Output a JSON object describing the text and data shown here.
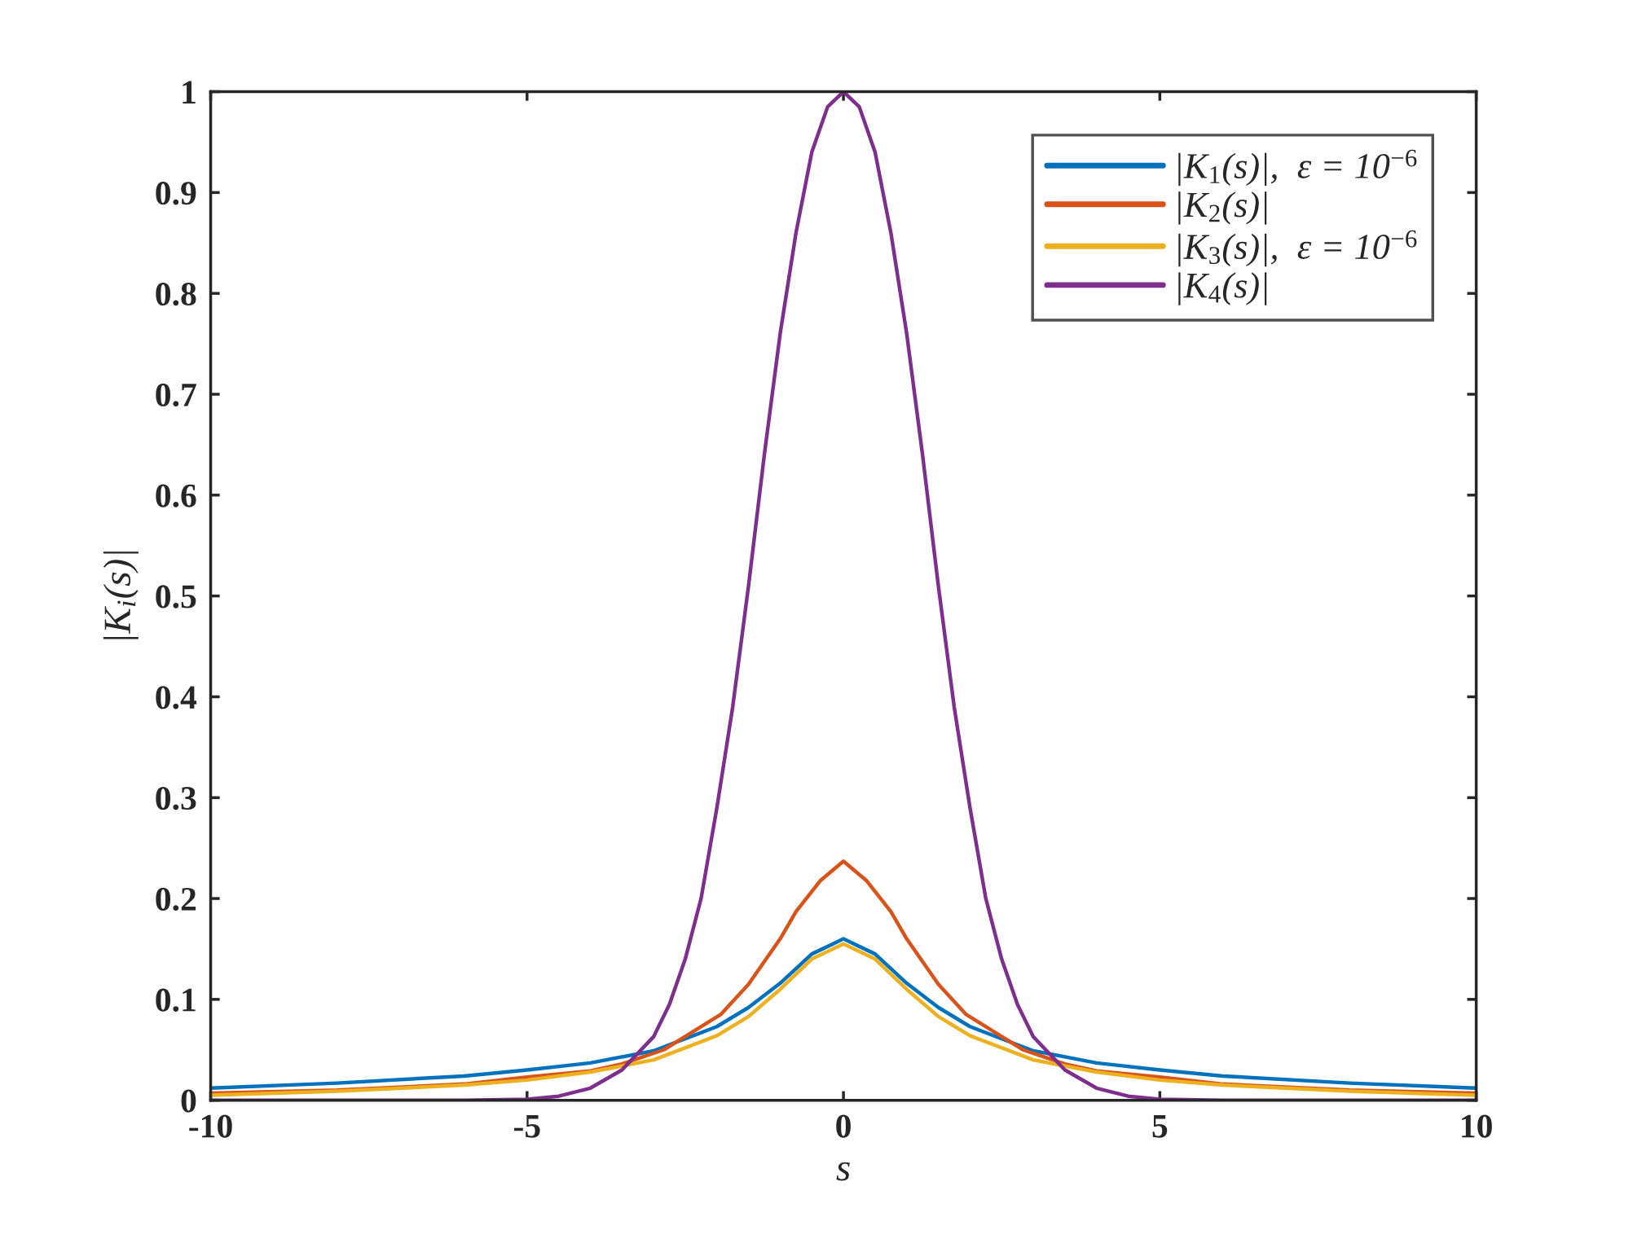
{
  "chart_data": {
    "type": "line",
    "xlabel": "s",
    "ylabel": "|K$_{i}$(s)|",
    "xlim": [
      -10,
      10
    ],
    "ylim": [
      0,
      1
    ],
    "xticks": [
      -10,
      -5,
      0,
      5,
      10
    ],
    "yticks": [
      0,
      0.1,
      0.2,
      0.3,
      0.4,
      0.5,
      0.6,
      0.7,
      0.8,
      0.9,
      1
    ],
    "grid": false,
    "legend": "top right",
    "marker": "none",
    "line_style": "solid",
    "series": [
      {
        "name": "|K$_{1}$(s)|,  ε = 10$^{−6}$",
        "color": "#0072bd",
        "x": [
          -10,
          -8,
          -6,
          -5,
          -4,
          -3,
          -2,
          -1.5,
          -1,
          -0.5,
          0,
          0.5,
          1,
          1.5,
          2,
          3,
          4,
          5,
          6,
          8,
          10
        ],
        "values": [
          0.012,
          0.017,
          0.024,
          0.03,
          0.037,
          0.049,
          0.073,
          0.092,
          0.116,
          0.145,
          0.16,
          0.145,
          0.116,
          0.092,
          0.073,
          0.049,
          0.037,
          0.03,
          0.024,
          0.017,
          0.012
        ]
      },
      {
        "name": "|K$_{2}$(s)|",
        "color": "#d95319",
        "x": [
          -10,
          -8,
          -6,
          -5,
          -4,
          -3.5,
          -2.84,
          -1.94,
          -1.5,
          -1,
          -0.75,
          -0.36,
          0,
          0.36,
          0.75,
          1,
          1.5,
          1.94,
          2.84,
          3.5,
          4,
          5,
          6,
          8,
          10
        ],
        "values": [
          0.007,
          0.01,
          0.016,
          0.023,
          0.029,
          0.036,
          0.05,
          0.085,
          0.115,
          0.16,
          0.187,
          0.218,
          0.237,
          0.218,
          0.187,
          0.16,
          0.115,
          0.085,
          0.05,
          0.036,
          0.029,
          0.023,
          0.016,
          0.01,
          0.007
        ]
      },
      {
        "name": "|K$_{3}$(s)|,  ε = 10$^{−6}$",
        "color": "#edb120",
        "x": [
          -10,
          -8,
          -6,
          -5,
          -4,
          -3,
          -2,
          -1.5,
          -1,
          -0.5,
          0,
          0.5,
          1,
          1.5,
          2,
          3,
          4,
          5,
          6,
          8,
          10
        ],
        "values": [
          0.005,
          0.009,
          0.015,
          0.02,
          0.028,
          0.04,
          0.064,
          0.083,
          0.11,
          0.14,
          0.155,
          0.14,
          0.11,
          0.083,
          0.064,
          0.04,
          0.028,
          0.02,
          0.015,
          0.009,
          0.005
        ]
      },
      {
        "name": "|K$_{4}$(s)|",
        "color": "#7e2f8e",
        "x": [
          -10,
          -6,
          -5,
          -4.5,
          -4,
          -3.5,
          -3,
          -2.75,
          -2.5,
          -2.25,
          -2,
          -1.75,
          -1.5,
          -1.25,
          -1,
          -0.75,
          -0.5,
          -0.25,
          0,
          0.25,
          0.5,
          0.75,
          1,
          1.25,
          1.5,
          1.75,
          2,
          2.25,
          2.5,
          2.75,
          3,
          3.5,
          4,
          4.5,
          5,
          6,
          10
        ],
        "values": [
          0,
          0,
          0.001,
          0.004,
          0.012,
          0.03,
          0.063,
          0.095,
          0.14,
          0.2,
          0.29,
          0.39,
          0.51,
          0.64,
          0.76,
          0.86,
          0.94,
          0.985,
          1,
          0.985,
          0.94,
          0.86,
          0.76,
          0.64,
          0.51,
          0.39,
          0.29,
          0.2,
          0.14,
          0.095,
          0.063,
          0.03,
          0.012,
          0.004,
          0.001,
          0,
          0
        ]
      }
    ]
  }
}
